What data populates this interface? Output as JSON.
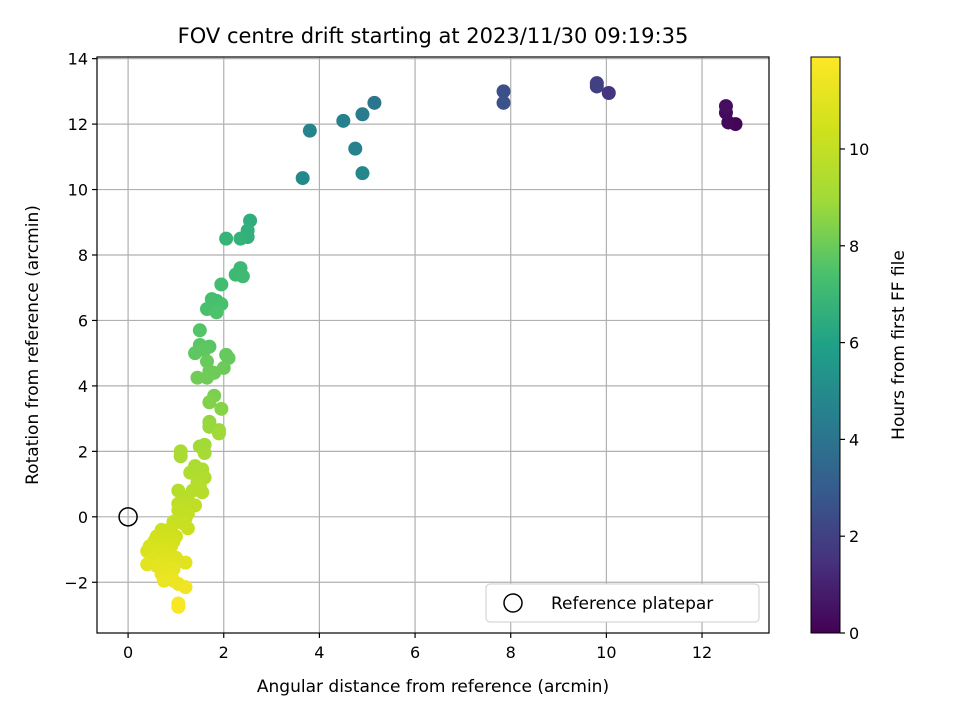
{
  "chart_data": {
    "type": "scatter",
    "title": "FOV centre drift starting at 2023/11/30 09:19:35",
    "xlabel": "Angular distance from reference (arcmin)",
    "ylabel": "Rotation from reference (arcmin)",
    "xlim": [
      -0.65,
      13.4
    ],
    "ylim": [
      -3.55,
      14.05
    ],
    "xticks": [
      0,
      2,
      4,
      6,
      8,
      10,
      12
    ],
    "yticks": [
      -2,
      0,
      2,
      4,
      6,
      8,
      10,
      12,
      14
    ],
    "grid": true,
    "colorbar": {
      "label": "Hours from first FF file",
      "colormap": "viridis",
      "range": [
        0,
        11.9
      ],
      "ticks": [
        0,
        2,
        4,
        6,
        8,
        10
      ]
    },
    "legend": {
      "location": "lower-right",
      "entries": [
        {
          "label": "Reference platepar",
          "marker": "open-circle",
          "x": 0,
          "y": 0
        }
      ]
    },
    "series": [
      {
        "points": [
          {
            "x": 12.7,
            "y": 12.0,
            "t": 0.1
          },
          {
            "x": 12.55,
            "y": 12.05,
            "t": 0.2
          },
          {
            "x": 12.5,
            "y": 12.35,
            "t": 0.3
          },
          {
            "x": 12.5,
            "y": 12.55,
            "t": 0.4
          },
          {
            "x": 10.05,
            "y": 12.95,
            "t": 1.6
          },
          {
            "x": 9.8,
            "y": 13.15,
            "t": 1.9
          },
          {
            "x": 9.8,
            "y": 13.25,
            "t": 2.0
          },
          {
            "x": 7.85,
            "y": 13.0,
            "t": 2.5
          },
          {
            "x": 7.85,
            "y": 12.65,
            "t": 2.6
          },
          {
            "x": 5.15,
            "y": 12.65,
            "t": 4.1
          },
          {
            "x": 4.9,
            "y": 12.3,
            "t": 4.3
          },
          {
            "x": 4.5,
            "y": 12.1,
            "t": 4.5
          },
          {
            "x": 3.8,
            "y": 11.8,
            "t": 4.7
          },
          {
            "x": 4.75,
            "y": 11.25,
            "t": 4.6
          },
          {
            "x": 3.65,
            "y": 10.35,
            "t": 4.9
          },
          {
            "x": 4.9,
            "y": 10.5,
            "t": 4.8
          },
          {
            "x": 2.55,
            "y": 9.05,
            "t": 6.5
          },
          {
            "x": 2.5,
            "y": 8.75,
            "t": 6.6
          },
          {
            "x": 2.5,
            "y": 8.55,
            "t": 6.6
          },
          {
            "x": 2.35,
            "y": 8.5,
            "t": 6.7
          },
          {
            "x": 2.05,
            "y": 8.5,
            "t": 6.8
          },
          {
            "x": 2.35,
            "y": 7.6,
            "t": 7.0
          },
          {
            "x": 2.25,
            "y": 7.4,
            "t": 7.0
          },
          {
            "x": 2.4,
            "y": 7.35,
            "t": 7.1
          },
          {
            "x": 1.95,
            "y": 7.1,
            "t": 7.2
          },
          {
            "x": 1.75,
            "y": 6.65,
            "t": 7.3
          },
          {
            "x": 1.85,
            "y": 6.6,
            "t": 7.3
          },
          {
            "x": 1.95,
            "y": 6.5,
            "t": 7.4
          },
          {
            "x": 1.65,
            "y": 6.35,
            "t": 7.4
          },
          {
            "x": 1.85,
            "y": 6.25,
            "t": 7.5
          },
          {
            "x": 1.5,
            "y": 5.7,
            "t": 7.6
          },
          {
            "x": 1.5,
            "y": 5.25,
            "t": 7.7
          },
          {
            "x": 1.7,
            "y": 5.2,
            "t": 7.7
          },
          {
            "x": 1.6,
            "y": 5.1,
            "t": 7.8
          },
          {
            "x": 1.4,
            "y": 5.0,
            "t": 7.8
          },
          {
            "x": 2.05,
            "y": 4.95,
            "t": 7.9
          },
          {
            "x": 2.1,
            "y": 4.85,
            "t": 7.9
          },
          {
            "x": 1.65,
            "y": 4.75,
            "t": 7.95
          },
          {
            "x": 2.0,
            "y": 4.55,
            "t": 8.0
          },
          {
            "x": 1.7,
            "y": 4.45,
            "t": 8.0
          },
          {
            "x": 1.8,
            "y": 4.4,
            "t": 8.05
          },
          {
            "x": 1.45,
            "y": 4.25,
            "t": 8.1
          },
          {
            "x": 1.65,
            "y": 4.25,
            "t": 8.1
          },
          {
            "x": 1.8,
            "y": 3.7,
            "t": 8.3
          },
          {
            "x": 1.7,
            "y": 3.5,
            "t": 8.4
          },
          {
            "x": 1.95,
            "y": 3.3,
            "t": 8.5
          },
          {
            "x": 1.7,
            "y": 2.9,
            "t": 8.7
          },
          {
            "x": 1.7,
            "y": 2.75,
            "t": 8.8
          },
          {
            "x": 1.9,
            "y": 2.65,
            "t": 8.8
          },
          {
            "x": 1.9,
            "y": 2.55,
            "t": 8.9
          },
          {
            "x": 1.6,
            "y": 2.2,
            "t": 9.0
          },
          {
            "x": 1.5,
            "y": 2.15,
            "t": 9.0
          },
          {
            "x": 1.6,
            "y": 1.95,
            "t": 9.1
          },
          {
            "x": 1.1,
            "y": 2.0,
            "t": 9.2
          },
          {
            "x": 1.1,
            "y": 1.85,
            "t": 9.2
          },
          {
            "x": 1.4,
            "y": 1.55,
            "t": 9.3
          },
          {
            "x": 1.55,
            "y": 1.45,
            "t": 9.35
          },
          {
            "x": 1.3,
            "y": 1.35,
            "t": 9.4
          },
          {
            "x": 1.55,
            "y": 1.3,
            "t": 9.4
          },
          {
            "x": 1.6,
            "y": 1.2,
            "t": 9.45
          },
          {
            "x": 1.45,
            "y": 1.05,
            "t": 9.5
          },
          {
            "x": 1.5,
            "y": 0.95,
            "t": 9.55
          },
          {
            "x": 1.35,
            "y": 0.8,
            "t": 9.6
          },
          {
            "x": 1.55,
            "y": 0.75,
            "t": 9.6
          },
          {
            "x": 1.05,
            "y": 0.8,
            "t": 9.65
          },
          {
            "x": 1.2,
            "y": 0.6,
            "t": 9.7
          },
          {
            "x": 1.05,
            "y": 0.4,
            "t": 9.75
          },
          {
            "x": 1.3,
            "y": 0.4,
            "t": 9.8
          },
          {
            "x": 1.4,
            "y": 0.35,
            "t": 9.85
          },
          {
            "x": 1.2,
            "y": 0.3,
            "t": 9.9
          },
          {
            "x": 1.05,
            "y": 0.2,
            "t": 9.95
          },
          {
            "x": 1.25,
            "y": 0.1,
            "t": 10.0
          },
          {
            "x": 1.2,
            "y": -0.05,
            "t": 10.05
          },
          {
            "x": 0.95,
            "y": -0.15,
            "t": 10.1
          },
          {
            "x": 1.15,
            "y": -0.2,
            "t": 10.15
          },
          {
            "x": 1.25,
            "y": -0.35,
            "t": 10.2
          },
          {
            "x": 0.9,
            "y": -0.35,
            "t": 10.25
          },
          {
            "x": 0.7,
            "y": -0.4,
            "t": 10.3
          },
          {
            "x": 0.85,
            "y": -0.55,
            "t": 10.35
          },
          {
            "x": 0.6,
            "y": -0.6,
            "t": 10.4
          },
          {
            "x": 1.0,
            "y": -0.6,
            "t": 10.4
          },
          {
            "x": 0.8,
            "y": -0.7,
            "t": 10.45
          },
          {
            "x": 0.55,
            "y": -0.75,
            "t": 10.5
          },
          {
            "x": 0.95,
            "y": -0.75,
            "t": 10.5
          },
          {
            "x": 0.7,
            "y": -0.85,
            "t": 10.55
          },
          {
            "x": 0.45,
            "y": -0.9,
            "t": 10.6
          },
          {
            "x": 0.9,
            "y": -0.9,
            "t": 10.6
          },
          {
            "x": 0.65,
            "y": -1.0,
            "t": 10.65
          },
          {
            "x": 0.55,
            "y": -1.05,
            "t": 10.7
          },
          {
            "x": 0.4,
            "y": -1.05,
            "t": 10.7
          },
          {
            "x": 0.8,
            "y": -1.05,
            "t": 10.75
          },
          {
            "x": 0.9,
            "y": -1.2,
            "t": 10.8
          },
          {
            "x": 0.6,
            "y": -1.2,
            "t": 10.8
          },
          {
            "x": 0.75,
            "y": -1.25,
            "t": 10.85
          },
          {
            "x": 1.0,
            "y": -1.25,
            "t": 10.85
          },
          {
            "x": 0.5,
            "y": -1.3,
            "t": 10.9
          },
          {
            "x": 0.7,
            "y": -1.35,
            "t": 10.95
          },
          {
            "x": 1.2,
            "y": -1.4,
            "t": 11.0
          },
          {
            "x": 0.85,
            "y": -1.4,
            "t": 11.0
          },
          {
            "x": 0.4,
            "y": -1.45,
            "t": 11.05
          },
          {
            "x": 0.6,
            "y": -1.5,
            "t": 11.1
          },
          {
            "x": 0.8,
            "y": -1.55,
            "t": 11.1
          },
          {
            "x": 0.95,
            "y": -1.6,
            "t": 11.15
          },
          {
            "x": 0.7,
            "y": -1.75,
            "t": 11.2
          },
          {
            "x": 0.9,
            "y": -1.8,
            "t": 11.25
          },
          {
            "x": 0.75,
            "y": -1.95,
            "t": 11.3
          },
          {
            "x": 0.95,
            "y": -1.95,
            "t": 11.35
          },
          {
            "x": 1.05,
            "y": -2.05,
            "t": 11.4
          },
          {
            "x": 1.2,
            "y": -2.15,
            "t": 11.45
          },
          {
            "x": 1.05,
            "y": -2.65,
            "t": 11.7
          },
          {
            "x": 1.05,
            "y": -2.75,
            "t": 11.8
          }
        ]
      }
    ]
  }
}
